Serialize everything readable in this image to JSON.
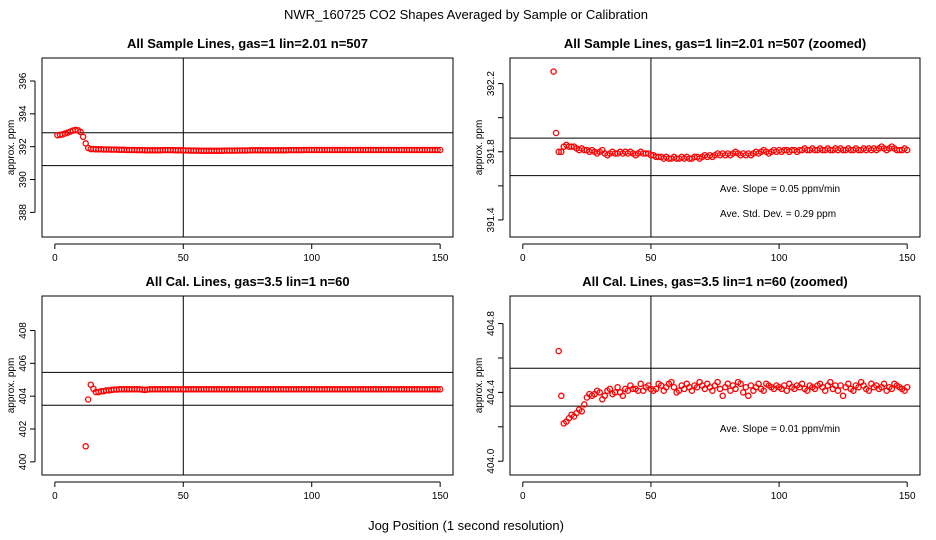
{
  "figure": {
    "title": "NWR_160725  CO2 Shapes Averaged by Sample or Calibration",
    "xlabel": "Jog Position (1 second resolution)"
  },
  "chart_data": [
    {
      "type": "scatter",
      "title": "All Sample Lines, gas=1 lin=2.01 n=507",
      "xlabel": "",
      "ylabel": "approx. ppm",
      "xlim": [
        -5,
        155
      ],
      "ylim": [
        386.5,
        397.4
      ],
      "xticks": [
        0,
        50,
        100,
        150
      ],
      "yticks": [
        388,
        390,
        392,
        394,
        396
      ],
      "xtick_labels": [
        "0",
        "50",
        "100",
        "150"
      ],
      "ytick_labels": [
        "388",
        "390",
        "392",
        "394",
        "396"
      ],
      "vline": 50,
      "hlines": [
        390.85,
        392.85
      ],
      "x": [
        1,
        2,
        3,
        4,
        5,
        6,
        7,
        8,
        9,
        10,
        11,
        12,
        13,
        14,
        15,
        16,
        17,
        18,
        19,
        20,
        21,
        22,
        23,
        24,
        25,
        26,
        27,
        28,
        29,
        30,
        31,
        32,
        33,
        34,
        35,
        36,
        37,
        38,
        39,
        40,
        41,
        42,
        43,
        44,
        45,
        46,
        47,
        48,
        49,
        50,
        51,
        52,
        53,
        54,
        55,
        56,
        57,
        58,
        59,
        60,
        61,
        62,
        63,
        64,
        65,
        66,
        67,
        68,
        69,
        70,
        71,
        72,
        73,
        74,
        75,
        76,
        77,
        78,
        79,
        80,
        81,
        82,
        83,
        84,
        85,
        86,
        87,
        88,
        89,
        90,
        91,
        92,
        93,
        94,
        95,
        96,
        97,
        98,
        99,
        100,
        101,
        102,
        103,
        104,
        105,
        106,
        107,
        108,
        109,
        110,
        111,
        112,
        113,
        114,
        115,
        116,
        117,
        118,
        119,
        120,
        121,
        122,
        123,
        124,
        125,
        126,
        127,
        128,
        129,
        130,
        131,
        132,
        133,
        134,
        135,
        136,
        137,
        138,
        139,
        140,
        141,
        142,
        143,
        144,
        145,
        146,
        147,
        148,
        149,
        150
      ],
      "y": [
        392.7,
        392.72,
        392.75,
        392.8,
        392.86,
        392.92,
        392.98,
        393.02,
        393.0,
        392.9,
        392.6,
        392.2,
        391.92,
        391.85,
        391.85,
        391.84,
        391.84,
        391.84,
        391.83,
        391.83,
        391.83,
        391.82,
        391.82,
        391.82,
        391.81,
        391.81,
        391.81,
        391.8,
        391.8,
        391.8,
        391.8,
        391.79,
        391.79,
        391.79,
        391.78,
        391.78,
        391.78,
        391.78,
        391.78,
        391.78,
        391.78,
        391.79,
        391.79,
        391.79,
        391.79,
        391.79,
        391.78,
        391.78,
        391.78,
        391.78,
        391.77,
        391.77,
        391.76,
        391.76,
        391.76,
        391.76,
        391.75,
        391.75,
        391.75,
        391.75,
        391.75,
        391.75,
        391.75,
        391.75,
        391.75,
        391.76,
        391.76,
        391.76,
        391.76,
        391.76,
        391.77,
        391.77,
        391.77,
        391.77,
        391.77,
        391.78,
        391.78,
        391.78,
        391.78,
        391.78,
        391.78,
        391.78,
        391.78,
        391.78,
        391.78,
        391.78,
        391.78,
        391.78,
        391.78,
        391.78,
        391.79,
        391.79,
        391.79,
        391.79,
        391.79,
        391.79,
        391.8,
        391.8,
        391.8,
        391.8,
        391.8,
        391.8,
        391.8,
        391.8,
        391.8,
        391.8,
        391.8,
        391.8,
        391.8,
        391.8,
        391.8,
        391.8,
        391.8,
        391.8,
        391.8,
        391.8,
        391.8,
        391.8,
        391.8,
        391.8,
        391.8,
        391.8,
        391.8,
        391.8,
        391.8,
        391.8,
        391.8,
        391.8,
        391.8,
        391.8,
        391.8,
        391.8,
        391.8,
        391.8,
        391.8,
        391.8,
        391.8,
        391.8,
        391.8,
        391.8,
        391.8,
        391.8,
        391.8,
        391.8,
        391.8,
        391.8,
        391.8,
        391.8,
        391.8,
        391.8
      ],
      "annotations": []
    },
    {
      "type": "scatter",
      "title": "All Sample Lines, gas=1 lin=2.01 n=507 (zoomed)",
      "xlabel": "",
      "ylabel": "approx. ppm",
      "xlim": [
        -5,
        155
      ],
      "ylim": [
        391.3,
        392.35
      ],
      "xticks": [
        0,
        50,
        100,
        150
      ],
      "yticks": [
        391.4,
        391.6,
        391.8,
        392.0,
        392.2
      ],
      "xtick_labels": [
        "0",
        "50",
        "100",
        "150"
      ],
      "ytick_labels": [
        "391.4",
        "",
        "391.8",
        "",
        "392.2"
      ],
      "vline": 50,
      "hlines": [
        391.66,
        391.88
      ],
      "x": [
        12,
        13,
        14,
        15,
        16,
        17,
        18,
        19,
        20,
        21,
        22,
        23,
        24,
        25,
        26,
        27,
        28,
        29,
        30,
        31,
        32,
        33,
        34,
        35,
        36,
        37,
        38,
        39,
        40,
        41,
        42,
        43,
        44,
        45,
        46,
        47,
        48,
        49,
        50,
        51,
        52,
        53,
        54,
        55,
        56,
        57,
        58,
        59,
        60,
        61,
        62,
        63,
        64,
        65,
        66,
        67,
        68,
        69,
        70,
        71,
        72,
        73,
        74,
        75,
        76,
        77,
        78,
        79,
        80,
        81,
        82,
        83,
        84,
        85,
        86,
        87,
        88,
        89,
        90,
        91,
        92,
        93,
        94,
        95,
        96,
        97,
        98,
        99,
        100,
        101,
        102,
        103,
        104,
        105,
        106,
        107,
        108,
        109,
        110,
        111,
        112,
        113,
        114,
        115,
        116,
        117,
        118,
        119,
        120,
        121,
        122,
        123,
        124,
        125,
        126,
        127,
        128,
        129,
        130,
        131,
        132,
        133,
        134,
        135,
        136,
        137,
        138,
        139,
        140,
        141,
        142,
        143,
        144,
        145,
        146,
        147,
        148,
        149,
        150
      ],
      "y": [
        392.27,
        391.91,
        391.8,
        391.8,
        391.83,
        391.84,
        391.83,
        391.83,
        391.83,
        391.82,
        391.81,
        391.82,
        391.81,
        391.81,
        391.8,
        391.81,
        391.8,
        391.79,
        391.8,
        391.81,
        391.79,
        391.78,
        391.79,
        391.8,
        391.79,
        391.79,
        391.8,
        391.79,
        391.8,
        391.79,
        391.8,
        391.79,
        391.78,
        391.79,
        391.8,
        391.79,
        391.79,
        391.79,
        391.78,
        391.78,
        391.77,
        391.77,
        391.77,
        391.76,
        391.77,
        391.76,
        391.76,
        391.77,
        391.76,
        391.76,
        391.77,
        391.76,
        391.77,
        391.76,
        391.76,
        391.77,
        391.77,
        391.76,
        391.77,
        391.78,
        391.77,
        391.78,
        391.77,
        391.78,
        391.79,
        391.78,
        391.79,
        391.78,
        391.79,
        391.78,
        391.79,
        391.8,
        391.79,
        391.78,
        391.79,
        391.78,
        391.79,
        391.78,
        391.79,
        391.8,
        391.79,
        391.8,
        391.81,
        391.8,
        391.79,
        391.8,
        391.81,
        391.8,
        391.81,
        391.8,
        391.81,
        391.81,
        391.8,
        391.81,
        391.81,
        391.8,
        391.81,
        391.81,
        391.82,
        391.81,
        391.81,
        391.82,
        391.81,
        391.81,
        391.82,
        391.81,
        391.81,
        391.82,
        391.81,
        391.81,
        391.82,
        391.81,
        391.82,
        391.81,
        391.81,
        391.82,
        391.81,
        391.81,
        391.82,
        391.81,
        391.81,
        391.82,
        391.81,
        391.82,
        391.81,
        391.82,
        391.81,
        391.82,
        391.83,
        391.82,
        391.81,
        391.82,
        391.83,
        391.82,
        391.81,
        391.81,
        391.81,
        391.82,
        391.81
      ],
      "annotations": [
        {
          "label": "Ave. Slope =  0.05  ppm/min"
        },
        {
          "label": "Ave. Std. Dev. =  0.29  ppm"
        }
      ]
    },
    {
      "type": "scatter",
      "title": "All Cal. Lines, gas=3.5 lin=1 n=60",
      "xlabel": "",
      "ylabel": "approx. ppm",
      "xlim": [
        -5,
        155
      ],
      "ylim": [
        399.2,
        410.1
      ],
      "xticks": [
        0,
        50,
        100,
        150
      ],
      "yticks": [
        400,
        402,
        404,
        406,
        408
      ],
      "xtick_labels": [
        "0",
        "50",
        "100",
        "150"
      ],
      "ytick_labels": [
        "400",
        "402",
        "404",
        "406",
        "408"
      ],
      "vline": 50,
      "hlines": [
        403.45,
        405.45
      ],
      "x": [
        12,
        13,
        14,
        15,
        16,
        17,
        18,
        19,
        20,
        21,
        22,
        23,
        24,
        25,
        26,
        27,
        28,
        29,
        30,
        31,
        32,
        33,
        34,
        35,
        36,
        37,
        38,
        39,
        40,
        41,
        42,
        43,
        44,
        45,
        46,
        47,
        48,
        49,
        50,
        51,
        52,
        53,
        54,
        55,
        56,
        57,
        58,
        59,
        60,
        61,
        62,
        63,
        64,
        65,
        66,
        67,
        68,
        69,
        70,
        71,
        72,
        73,
        74,
        75,
        76,
        77,
        78,
        79,
        80,
        81,
        82,
        83,
        84,
        85,
        86,
        87,
        88,
        89,
        90,
        91,
        92,
        93,
        94,
        95,
        96,
        97,
        98,
        99,
        100,
        101,
        102,
        103,
        104,
        105,
        106,
        107,
        108,
        109,
        110,
        111,
        112,
        113,
        114,
        115,
        116,
        117,
        118,
        119,
        120,
        121,
        122,
        123,
        124,
        125,
        126,
        127,
        128,
        129,
        130,
        131,
        132,
        133,
        134,
        135,
        136,
        137,
        138,
        139,
        140,
        141,
        142,
        143,
        144,
        145,
        146,
        147,
        148,
        149,
        150
      ],
      "y": [
        400.95,
        403.8,
        404.7,
        404.45,
        404.25,
        404.25,
        404.3,
        404.3,
        404.35,
        404.35,
        404.38,
        404.4,
        404.4,
        404.42,
        404.42,
        404.42,
        404.42,
        404.42,
        404.42,
        404.42,
        404.42,
        404.42,
        404.4,
        404.38,
        404.4,
        404.42,
        404.42,
        404.42,
        404.42,
        404.42,
        404.42,
        404.42,
        404.42,
        404.42,
        404.42,
        404.42,
        404.42,
        404.42,
        404.42,
        404.42,
        404.42,
        404.42,
        404.42,
        404.42,
        404.42,
        404.42,
        404.42,
        404.42,
        404.42,
        404.42,
        404.42,
        404.42,
        404.42,
        404.42,
        404.42,
        404.42,
        404.42,
        404.42,
        404.42,
        404.42,
        404.42,
        404.42,
        404.42,
        404.42,
        404.42,
        404.42,
        404.42,
        404.42,
        404.42,
        404.42,
        404.42,
        404.42,
        404.42,
        404.42,
        404.42,
        404.42,
        404.42,
        404.42,
        404.42,
        404.42,
        404.42,
        404.42,
        404.42,
        404.42,
        404.42,
        404.42,
        404.42,
        404.42,
        404.42,
        404.42,
        404.42,
        404.42,
        404.42,
        404.42,
        404.42,
        404.42,
        404.42,
        404.42,
        404.42,
        404.42,
        404.42,
        404.42,
        404.42,
        404.42,
        404.42,
        404.42,
        404.42,
        404.42,
        404.42,
        404.42,
        404.42,
        404.42,
        404.42,
        404.42,
        404.42,
        404.42,
        404.42,
        404.42,
        404.42,
        404.42,
        404.42,
        404.42,
        404.42,
        404.42,
        404.42,
        404.42,
        404.42,
        404.42,
        404.42,
        404.42,
        404.42,
        404.42,
        404.42,
        404.42,
        404.42,
        404.42,
        404.42,
        404.42,
        404.42
      ],
      "annotations": []
    },
    {
      "type": "scatter",
      "title": "All Cal. Lines, gas=3.5 lin=1 n=60 (zoomed)",
      "xlabel": "",
      "ylabel": "approx. ppm",
      "xlim": [
        -5,
        155
      ],
      "ylim": [
        403.92,
        404.96
      ],
      "xticks": [
        0,
        50,
        100,
        150
      ],
      "yticks": [
        404.0,
        404.2,
        404.4,
        404.6,
        404.8
      ],
      "xtick_labels": [
        "0",
        "50",
        "100",
        "150"
      ],
      "ytick_labels": [
        "404.0",
        "",
        "404.4",
        "",
        "404.8"
      ],
      "vline": 50,
      "hlines": [
        404.32,
        404.54
      ],
      "x": [
        14,
        15,
        16,
        17,
        18,
        19,
        20,
        21,
        22,
        23,
        24,
        25,
        26,
        27,
        28,
        29,
        30,
        31,
        32,
        33,
        34,
        35,
        36,
        37,
        38,
        39,
        40,
        41,
        42,
        43,
        44,
        45,
        46,
        47,
        48,
        49,
        50,
        51,
        52,
        53,
        54,
        55,
        56,
        57,
        58,
        59,
        60,
        61,
        62,
        63,
        64,
        65,
        66,
        67,
        68,
        69,
        70,
        71,
        72,
        73,
        74,
        75,
        76,
        77,
        78,
        79,
        80,
        81,
        82,
        83,
        84,
        85,
        86,
        87,
        88,
        89,
        90,
        91,
        92,
        93,
        94,
        95,
        96,
        97,
        98,
        99,
        100,
        101,
        102,
        103,
        104,
        105,
        106,
        107,
        108,
        109,
        110,
        111,
        112,
        113,
        114,
        115,
        116,
        117,
        118,
        119,
        120,
        121,
        122,
        123,
        124,
        125,
        126,
        127,
        128,
        129,
        130,
        131,
        132,
        133,
        134,
        135,
        136,
        137,
        138,
        139,
        140,
        141,
        142,
        143,
        144,
        145,
        146,
        147,
        148,
        149,
        150
      ],
      "y": [
        404.64,
        404.38,
        404.22,
        404.23,
        404.25,
        404.27,
        404.26,
        404.28,
        404.3,
        404.29,
        404.33,
        404.37,
        404.39,
        404.38,
        404.39,
        404.41,
        404.4,
        404.36,
        404.38,
        404.41,
        404.42,
        404.39,
        404.4,
        404.43,
        404.4,
        404.38,
        404.42,
        404.41,
        404.44,
        404.42,
        404.42,
        404.41,
        404.45,
        404.41,
        404.43,
        404.44,
        404.42,
        404.41,
        404.42,
        404.45,
        404.44,
        404.41,
        404.43,
        404.45,
        404.46,
        404.43,
        404.4,
        404.41,
        404.44,
        404.42,
        404.45,
        404.43,
        404.41,
        404.44,
        404.43,
        404.46,
        404.44,
        404.42,
        404.45,
        404.43,
        404.41,
        404.44,
        404.46,
        404.42,
        404.38,
        404.43,
        404.45,
        404.41,
        404.44,
        404.42,
        404.46,
        404.45,
        404.4,
        404.43,
        404.38,
        404.44,
        404.41,
        404.43,
        404.45,
        404.42,
        404.41,
        404.45,
        404.44,
        404.43,
        404.42,
        404.44,
        404.43,
        404.42,
        404.44,
        404.41,
        404.45,
        404.43,
        404.42,
        404.44,
        404.43,
        404.45,
        404.42,
        404.41,
        404.44,
        404.43,
        404.42,
        404.44,
        404.45,
        404.43,
        404.41,
        404.44,
        404.46,
        404.42,
        404.44,
        404.41,
        404.44,
        404.38,
        404.43,
        404.45,
        404.42,
        404.41,
        404.44,
        404.43,
        404.46,
        404.44,
        404.42,
        404.41,
        404.45,
        404.43,
        404.44,
        404.42,
        404.43,
        404.45,
        404.41,
        404.43,
        404.42,
        404.45,
        404.44,
        404.43,
        404.42,
        404.41,
        404.43
      ],
      "annotations": [
        {
          "label": "Ave. Slope =  0.01  ppm/min"
        }
      ]
    }
  ]
}
